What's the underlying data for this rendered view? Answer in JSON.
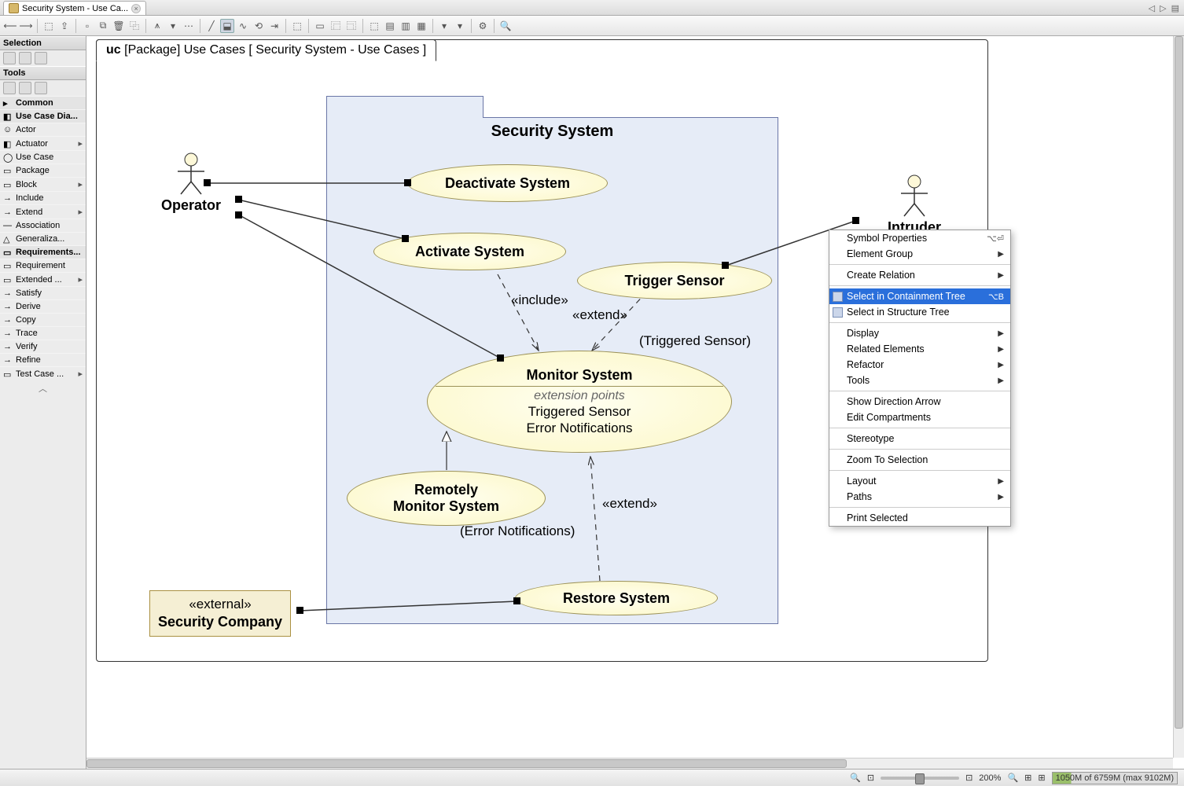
{
  "tab": {
    "title": "Security System - Use Ca...",
    "close": "×"
  },
  "tabbar_right": [
    "◁",
    "▷",
    "▤"
  ],
  "palette": {
    "selection_header": "Selection",
    "tools_header": "Tools",
    "common": "Common",
    "use_case_dia": "Use Case Dia...",
    "items": [
      {
        "label": "Actor",
        "icon": "☺"
      },
      {
        "label": "Actuator",
        "icon": "◧",
        "expand": true
      },
      {
        "label": "Use Case",
        "icon": "◯"
      },
      {
        "label": "Package",
        "icon": "▭"
      },
      {
        "label": "Block",
        "icon": "▭",
        "expand": true
      },
      {
        "label": "Include",
        "icon": "→"
      },
      {
        "label": "Extend",
        "icon": "→",
        "expand": true
      },
      {
        "label": "Association",
        "icon": "—"
      },
      {
        "label": "Generaliza...",
        "icon": "△"
      }
    ],
    "requirements": "Requirements...",
    "req_items": [
      {
        "label": "Requirement",
        "icon": "▭"
      },
      {
        "label": "Extended ...",
        "icon": "▭",
        "expand": true
      },
      {
        "label": "Satisfy",
        "icon": "→"
      },
      {
        "label": "Derive",
        "icon": "→"
      },
      {
        "label": "Copy",
        "icon": "→"
      },
      {
        "label": "Trace",
        "icon": "→"
      },
      {
        "label": "Verify",
        "icon": "→"
      },
      {
        "label": "Refine",
        "icon": "→"
      },
      {
        "label": "Test Case ...",
        "icon": "▭",
        "expand": true
      }
    ]
  },
  "diagram": {
    "frame_label_prefix": "uc",
    "frame_label": " [Package] Use Cases [ Security System - Use Cases  ]",
    "package_title": "Security System",
    "actors": {
      "operator": "Operator",
      "intruder": "Intruder"
    },
    "usecases": {
      "deactivate": "Deactivate System",
      "activate": "Activate System",
      "trigger": "Trigger Sensor",
      "monitor": "Monitor System",
      "monitor_ext_header": "extension points",
      "monitor_ext1": "Triggered Sensor",
      "monitor_ext2": "Error Notifications",
      "remote": "Remotely\nMonitor System",
      "restore": "Restore System"
    },
    "external_block": {
      "stereotype": "«external»",
      "name": "Security Company"
    },
    "labels": {
      "include": "«include»",
      "extend1": "«extend»",
      "triggered": "(Triggered Sensor)",
      "error": "(Error Notifications)",
      "extend2": "«extend»"
    }
  },
  "contextmenu": {
    "items": [
      {
        "label": "Symbol Properties",
        "shortcut": "⌥⏎"
      },
      {
        "label": "Element Group",
        "arrow": true
      },
      {
        "sep": true
      },
      {
        "label": "Create Relation",
        "arrow": true
      },
      {
        "sep": true
      },
      {
        "label": "Select in Containment Tree",
        "shortcut": "⌥B",
        "highlight": true,
        "icon": true
      },
      {
        "label": "Select in Structure Tree",
        "icon": true
      },
      {
        "sep": true
      },
      {
        "label": "Display",
        "arrow": true
      },
      {
        "label": "Related Elements",
        "arrow": true
      },
      {
        "label": "Refactor",
        "arrow": true
      },
      {
        "label": "Tools",
        "arrow": true
      },
      {
        "sep": true
      },
      {
        "label": "Show Direction Arrow"
      },
      {
        "label": "Edit Compartments"
      },
      {
        "sep": true
      },
      {
        "label": "Stereotype"
      },
      {
        "sep": true
      },
      {
        "label": "Zoom To Selection"
      },
      {
        "sep": true
      },
      {
        "label": "Layout",
        "arrow": true
      },
      {
        "label": "Paths",
        "arrow": true
      },
      {
        "sep": true
      },
      {
        "label": "Print Selected"
      }
    ]
  },
  "status": {
    "zoom": "200%",
    "memory": "1050M of 6759M  (max 9102M)"
  },
  "colors": {
    "pkg_bg": "#e6ecf7",
    "pkg_border": "#6a76a6",
    "usecase_fill": "#fcf7c7",
    "usecase_border": "#9c9258",
    "external_fill": "#f5efd4",
    "external_border": "#aa9142",
    "highlight": "#2a6fdb"
  }
}
